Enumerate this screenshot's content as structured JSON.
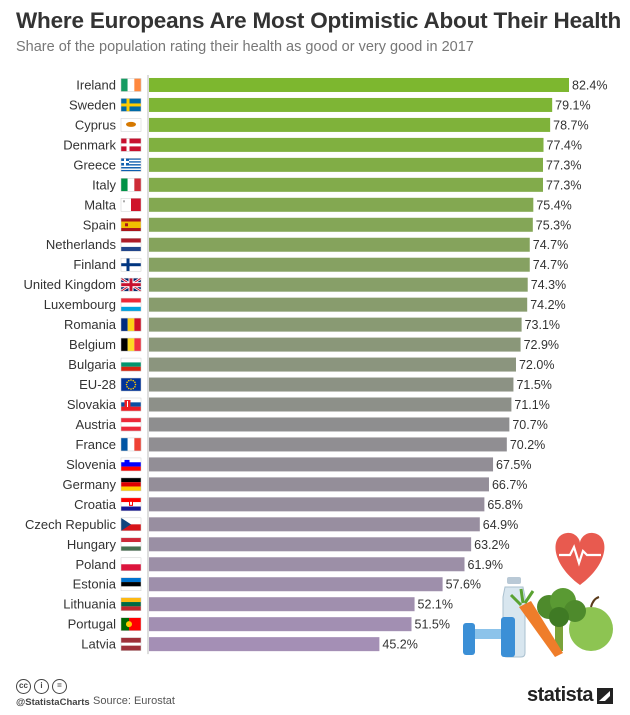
{
  "header": {
    "title": "Where Europeans Are Most Optimistic About Their Health",
    "subtitle": "Share of the population rating their health as good or very good in 2017"
  },
  "footer": {
    "handle": "@StatistaCharts",
    "source": "Source: Eurostat",
    "brand": "statista",
    "license_icons": [
      "cc-icon",
      "by-icon",
      "nd-icon"
    ]
  },
  "colors": {
    "bar_top": "#7db72f",
    "bar_mid": "#8e8e8e",
    "bar_bottom": "#a48fb5",
    "label": "#333333"
  },
  "decor_icons": [
    "heart-rate-icon",
    "water-bottle-icon",
    "dumbbell-icon",
    "broccoli-icon",
    "carrot-icon",
    "apple-icon"
  ],
  "chart_data": {
    "type": "bar",
    "orientation": "horizontal",
    "value_suffix": "%",
    "categories": [
      "Ireland",
      "Sweden",
      "Cyprus",
      "Denmark",
      "Greece",
      "Italy",
      "Malta",
      "Spain",
      "Netherlands",
      "Finland",
      "United Kingdom",
      "Luxembourg",
      "Romania",
      "Belgium",
      "Bulgaria",
      "EU-28",
      "Slovakia",
      "Austria",
      "France",
      "Slovenia",
      "Germany",
      "Croatia",
      "Czech Republic",
      "Hungary",
      "Poland",
      "Estonia",
      "Lithuania",
      "Portugal",
      "Latvia"
    ],
    "values": [
      82.4,
      79.1,
      78.7,
      77.4,
      77.3,
      77.3,
      75.4,
      75.3,
      74.7,
      74.7,
      74.3,
      74.2,
      73.1,
      72.9,
      72.0,
      71.5,
      71.1,
      70.7,
      70.2,
      67.5,
      66.7,
      65.8,
      64.9,
      63.2,
      61.9,
      57.6,
      52.1,
      51.5,
      45.2
    ],
    "labels": [
      "82.4%",
      "79.1%",
      "78.7%",
      "77.4%",
      "77.3%",
      "77.3%",
      "75.4%",
      "75.3%",
      "74.7%",
      "74.7%",
      "74.3%",
      "74.2%",
      "73.1%",
      "72.9%",
      "72.0%",
      "71.5%",
      "71.1%",
      "70.7%",
      "70.2%",
      "67.5%",
      "66.7%",
      "65.8%",
      "64.9%",
      "63.2%",
      "61.9%",
      "57.6%",
      "52.1%",
      "51.5%",
      "45.2%"
    ],
    "flags": [
      "ie",
      "se",
      "cy",
      "dk",
      "gr",
      "it",
      "mt",
      "es",
      "nl",
      "fi",
      "gb",
      "lu",
      "ro",
      "be",
      "bg",
      "eu",
      "sk",
      "at",
      "fr",
      "si",
      "de",
      "hr",
      "cz",
      "hu",
      "pl",
      "ee",
      "lt",
      "pt",
      "lv"
    ],
    "xlim": [
      0,
      82.4
    ],
    "grid": false,
    "legend": "none"
  }
}
